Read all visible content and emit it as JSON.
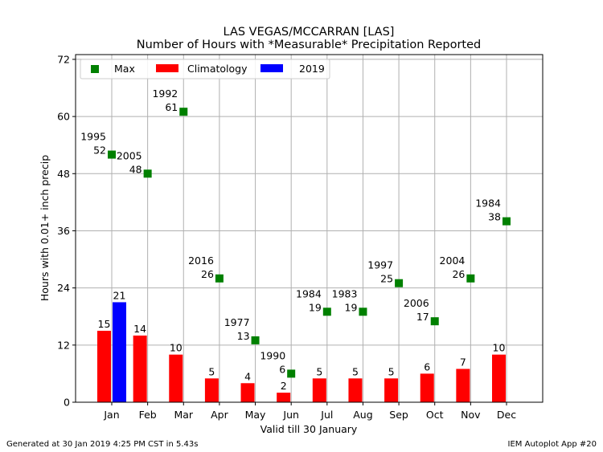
{
  "chart_data": {
    "type": "bar",
    "title": "LAS VEGAS/MCCARRAN [LAS]",
    "subtitle": "Number of Hours with *Measurable* Precipitation Reported",
    "xlabel": "Valid till 30 January",
    "ylabel": "Hours with 0.01+ inch precip",
    "categories": [
      "Jan",
      "Feb",
      "Mar",
      "Apr",
      "May",
      "Jun",
      "Jul",
      "Aug",
      "Sep",
      "Oct",
      "Nov",
      "Dec"
    ],
    "ylim": [
      0,
      73
    ],
    "yticks": [
      0,
      12,
      24,
      36,
      48,
      60,
      72
    ],
    "grid": true,
    "legend_position": "top-left",
    "series": [
      {
        "name": "Climatology",
        "type": "bar",
        "color": "#ff0000",
        "values": [
          15,
          14,
          10,
          5,
          4,
          2,
          5,
          5,
          5,
          6,
          7,
          10
        ],
        "labels": [
          "15",
          "14",
          "10",
          "5",
          "4",
          "2",
          "5",
          "5",
          "5",
          "6",
          "7",
          "10"
        ]
      },
      {
        "name": "2019",
        "type": "bar",
        "color": "#0000ff",
        "values": [
          21,
          null,
          null,
          null,
          null,
          null,
          null,
          null,
          null,
          null,
          null,
          null
        ],
        "labels": [
          "21",
          "",
          "",
          "",
          "",
          "",
          "",
          "",
          "",
          "",
          "",
          ""
        ]
      },
      {
        "name": "Max",
        "type": "marker",
        "color": "#008000",
        "values": [
          52,
          48,
          61,
          26,
          13,
          6,
          19,
          19,
          25,
          17,
          26,
          38
        ],
        "labels": [
          "52",
          "48",
          "61",
          "26",
          "13",
          "6",
          "19",
          "19",
          "25",
          "17",
          "26",
          "38"
        ],
        "years": [
          "1995",
          "2005",
          "1992",
          "2016",
          "1977",
          "1990",
          "1984",
          "1983",
          "1997",
          "2006",
          "2004",
          "1984"
        ]
      }
    ]
  },
  "footer": {
    "left": "Generated at 30 Jan 2019 4:25 PM CST in 5.43s",
    "right": "IEM Autoplot App #20"
  }
}
